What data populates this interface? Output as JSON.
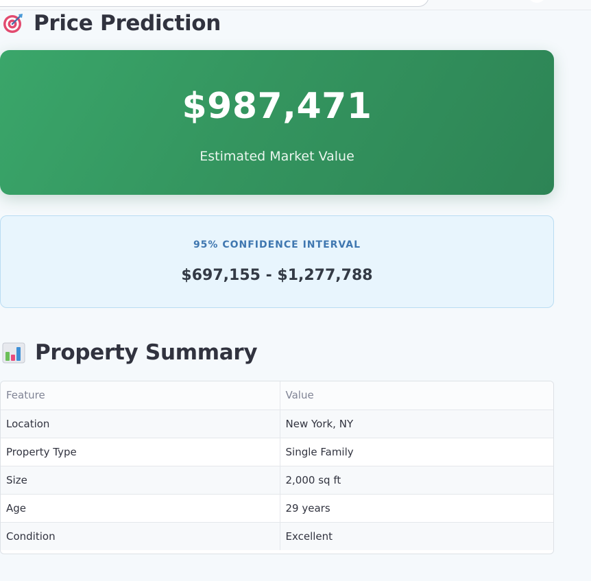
{
  "price_section": {
    "title": "Price Prediction",
    "icon": "target-icon",
    "predicted_price": "$987,471",
    "price_caption": "Estimated Market Value",
    "card_colors": [
      "#3aa66a",
      "#2d8455"
    ]
  },
  "confidence": {
    "label": "95% CONFIDENCE INTERVAL",
    "range": "$697,155 - $1,277,788"
  },
  "summary_section": {
    "title": "Property Summary",
    "icon": "bar-chart-icon",
    "columns": [
      "Feature",
      "Value"
    ],
    "rows": [
      {
        "feature": "Location",
        "value": "New York, NY"
      },
      {
        "feature": "Property Type",
        "value": "Single Family"
      },
      {
        "feature": "Size",
        "value": "2,000 sq ft"
      },
      {
        "feature": "Age",
        "value": "29 years"
      },
      {
        "feature": "Condition",
        "value": "Excellent"
      }
    ]
  }
}
